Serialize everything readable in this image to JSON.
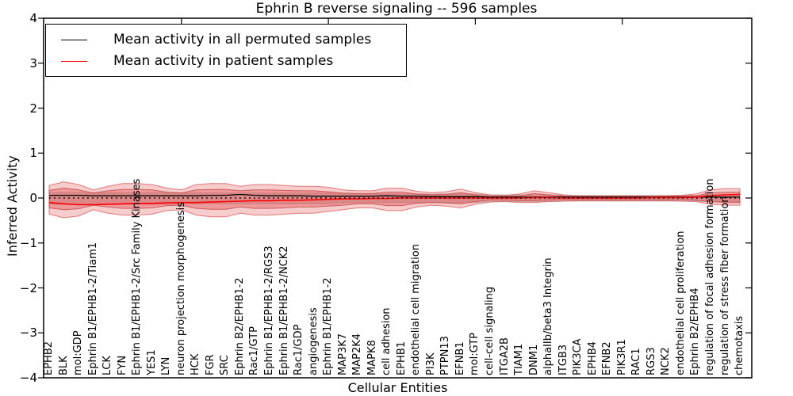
{
  "chart_data": {
    "type": "line",
    "title": "Ephrin B reverse signaling -- 596 samples",
    "xlabel": "Cellular Entities",
    "ylabel": "Inferred Activity",
    "ylim": [
      -4,
      4
    ],
    "grid": false,
    "legend_position": "upper left",
    "yticks": [
      {
        "label": "4",
        "value": 4
      },
      {
        "label": "3",
        "value": 3
      },
      {
        "label": "2",
        "value": 2
      },
      {
        "label": "1",
        "value": 1
      },
      {
        "label": "0",
        "value": 0
      },
      {
        "label": "−1",
        "value": -1
      },
      {
        "label": "−2",
        "value": -2
      },
      {
        "label": "−3",
        "value": -3
      },
      {
        "label": "−4",
        "value": -4
      }
    ],
    "baseline": {
      "value": 0,
      "style": "dotted",
      "color": "#000000"
    },
    "categories": [
      "EPHB2",
      "BLK",
      "mol:GDP",
      "Ephrin B1/EPHB1-2/Tiam1",
      "LCK",
      "FYN",
      "Ephrin B1/EPHB1-2/Src Family Kinases",
      "YES1",
      "LYN",
      "neuron projection morphogenesis",
      "HCK",
      "FGR",
      "SRC",
      "Ephrin B2/EPHB1-2",
      "Rac1/GTP",
      "Ephrin B1/EPHB1-2/RGS3",
      "Ephrin B1/EPHB1-2/NCK2",
      "Rac1/GDP",
      "angiogenesis",
      "Ephrin B1/EPHB1-2",
      "MAP3K7",
      "MAP2K4",
      "MAPK8",
      "cell adhesion",
      "EPHB1",
      "endothelial cell migration",
      "PI3K",
      "PTPN13",
      "EFNB1",
      "mol:GTP",
      "cell-cell signaling",
      "ITGA2B",
      "TIAM1",
      "DNM1",
      "alphaIIb/beta3 Integrin",
      "ITGB3",
      "PIK3CA",
      "EPHB4",
      "EFNB2",
      "PIK3R1",
      "RAC1",
      "RGS3",
      "NCK2",
      "endothelial cell proliferation",
      "Ephrin B2/EPHB4",
      "regulation of focal adhesion formation",
      "regulation of stress fiber formation",
      "chemotaxis"
    ],
    "series": [
      {
        "name": "Mean activity in all permuted samples",
        "color": "#000000",
        "style": "solid",
        "values": [
          0.06,
          0.06,
          0.06,
          0.05,
          0.05,
          0.05,
          0.05,
          0.05,
          0.05,
          0.05,
          0.05,
          0.06,
          0.06,
          0.08,
          0.06,
          0.05,
          0.05,
          0.05,
          0.04,
          0.04,
          0.04,
          0.04,
          0.04,
          0.05,
          0.04,
          0.04,
          0.03,
          0.03,
          0.03,
          0.03,
          0.02,
          0.02,
          0.02,
          0.02,
          0.02,
          0.02,
          0.02,
          0.02,
          0.02,
          0.02,
          0.02,
          0.02,
          0.02,
          0.02,
          0.02,
          0.02,
          0.02,
          0.02
        ]
      },
      {
        "name": "Mean activity in patient samples",
        "color": "#ff0000",
        "style": "solid",
        "values": [
          -0.1,
          -0.13,
          -0.15,
          -0.15,
          -0.14,
          -0.13,
          -0.12,
          -0.12,
          -0.11,
          -0.1,
          -0.1,
          -0.09,
          -0.08,
          -0.07,
          -0.06,
          -0.06,
          -0.05,
          -0.05,
          -0.04,
          -0.03,
          -0.02,
          -0.02,
          -0.01,
          -0.01,
          0,
          0,
          0,
          0,
          0,
          0,
          0,
          0,
          0,
          0.01,
          0.01,
          0,
          0,
          0,
          0,
          0,
          0,
          0.01,
          0.01,
          0.01,
          0.02,
          0.05,
          0.07,
          0.08
        ]
      }
    ],
    "bands": [
      {
        "name": "permuted-spread",
        "color": "#9e9e9e",
        "opacity": 0.35,
        "edge": "#bdbdbd",
        "upper": [
          0.12,
          0.12,
          0.12,
          0.12,
          0.12,
          0.12,
          0.12,
          0.12,
          0.12,
          0.12,
          0.11,
          0.11,
          0.11,
          0.11,
          0.11,
          0.11,
          0.11,
          0.11,
          0.11,
          0.11,
          0.09,
          0.09,
          0.09,
          0.09,
          0.09,
          0.09,
          0.09,
          0.09,
          0.09,
          0.09,
          0.07,
          0.07,
          0.07,
          0.07,
          0.07,
          0.06,
          0.06,
          0.06,
          0.06,
          0.06,
          0.06,
          0.06,
          0.06,
          0.06,
          0.06,
          0.07,
          0.07,
          0.07
        ],
        "lower": [
          -0.14,
          -0.14,
          -0.14,
          -0.14,
          -0.14,
          -0.14,
          -0.14,
          -0.14,
          -0.14,
          -0.14,
          -0.13,
          -0.13,
          -0.13,
          -0.13,
          -0.13,
          -0.13,
          -0.13,
          -0.13,
          -0.13,
          -0.13,
          -0.1,
          -0.1,
          -0.1,
          -0.1,
          -0.1,
          -0.1,
          -0.1,
          -0.1,
          -0.1,
          -0.1,
          -0.08,
          -0.08,
          -0.08,
          -0.08,
          -0.08,
          -0.07,
          -0.07,
          -0.07,
          -0.07,
          -0.07,
          -0.07,
          -0.07,
          -0.07,
          -0.07,
          -0.07,
          -0.08,
          -0.08,
          -0.08
        ]
      },
      {
        "name": "patient-outer",
        "color": "#dd3333",
        "opacity": 0.25,
        "edge": "#dd6666",
        "upper": [
          0.28,
          0.36,
          0.3,
          0.18,
          0.26,
          0.32,
          0.32,
          0.3,
          0.22,
          0.18,
          0.3,
          0.32,
          0.32,
          0.26,
          0.3,
          0.3,
          0.28,
          0.26,
          0.26,
          0.24,
          0.18,
          0.16,
          0.16,
          0.22,
          0.22,
          0.15,
          0.12,
          0.14,
          0.2,
          0.12,
          0.07,
          0.06,
          0.09,
          0.16,
          0.12,
          0.07,
          0.05,
          0.05,
          0.05,
          0.05,
          0.05,
          0.05,
          0.05,
          0.06,
          0.09,
          0.18,
          0.21,
          0.21
        ],
        "lower": [
          -0.36,
          -0.44,
          -0.4,
          -0.26,
          -0.34,
          -0.38,
          -0.38,
          -0.36,
          -0.28,
          -0.26,
          -0.38,
          -0.42,
          -0.42,
          -0.34,
          -0.38,
          -0.38,
          -0.36,
          -0.34,
          -0.34,
          -0.3,
          -0.26,
          -0.22,
          -0.22,
          -0.28,
          -0.28,
          -0.2,
          -0.16,
          -0.18,
          -0.22,
          -0.14,
          -0.09,
          -0.08,
          -0.1,
          -0.1,
          -0.08,
          -0.07,
          -0.06,
          -0.06,
          -0.06,
          -0.06,
          -0.06,
          -0.06,
          -0.06,
          -0.07,
          -0.08,
          -0.14,
          -0.16,
          -0.16
        ]
      },
      {
        "name": "patient-inner",
        "color": "#dd3333",
        "opacity": 0.32,
        "edge": "#c84c4c",
        "upper": [
          0.17,
          0.22,
          0.18,
          0.11,
          0.16,
          0.19,
          0.19,
          0.18,
          0.13,
          0.11,
          0.18,
          0.19,
          0.19,
          0.16,
          0.18,
          0.18,
          0.17,
          0.16,
          0.16,
          0.14,
          0.11,
          0.1,
          0.1,
          0.13,
          0.13,
          0.09,
          0.07,
          0.08,
          0.12,
          0.07,
          0.04,
          0.04,
          0.05,
          0.1,
          0.07,
          0.04,
          0.03,
          0.03,
          0.03,
          0.03,
          0.03,
          0.03,
          0.03,
          0.04,
          0.05,
          0.11,
          0.13,
          0.13
        ],
        "lower": [
          -0.22,
          -0.26,
          -0.24,
          -0.16,
          -0.2,
          -0.23,
          -0.23,
          -0.22,
          -0.17,
          -0.16,
          -0.23,
          -0.25,
          -0.25,
          -0.2,
          -0.23,
          -0.23,
          -0.22,
          -0.2,
          -0.2,
          -0.18,
          -0.16,
          -0.13,
          -0.13,
          -0.17,
          -0.17,
          -0.12,
          -0.1,
          -0.11,
          -0.13,
          -0.08,
          -0.05,
          -0.05,
          -0.06,
          -0.06,
          -0.05,
          -0.04,
          -0.04,
          -0.04,
          -0.04,
          -0.04,
          -0.04,
          -0.04,
          -0.04,
          -0.04,
          -0.05,
          -0.08,
          -0.1,
          -0.1
        ]
      }
    ]
  },
  "legend": {
    "items": [
      {
        "label": "Mean activity in all permuted samples",
        "color": "#000000"
      },
      {
        "label": "Mean activity in patient samples",
        "color": "#ff0000"
      }
    ]
  }
}
